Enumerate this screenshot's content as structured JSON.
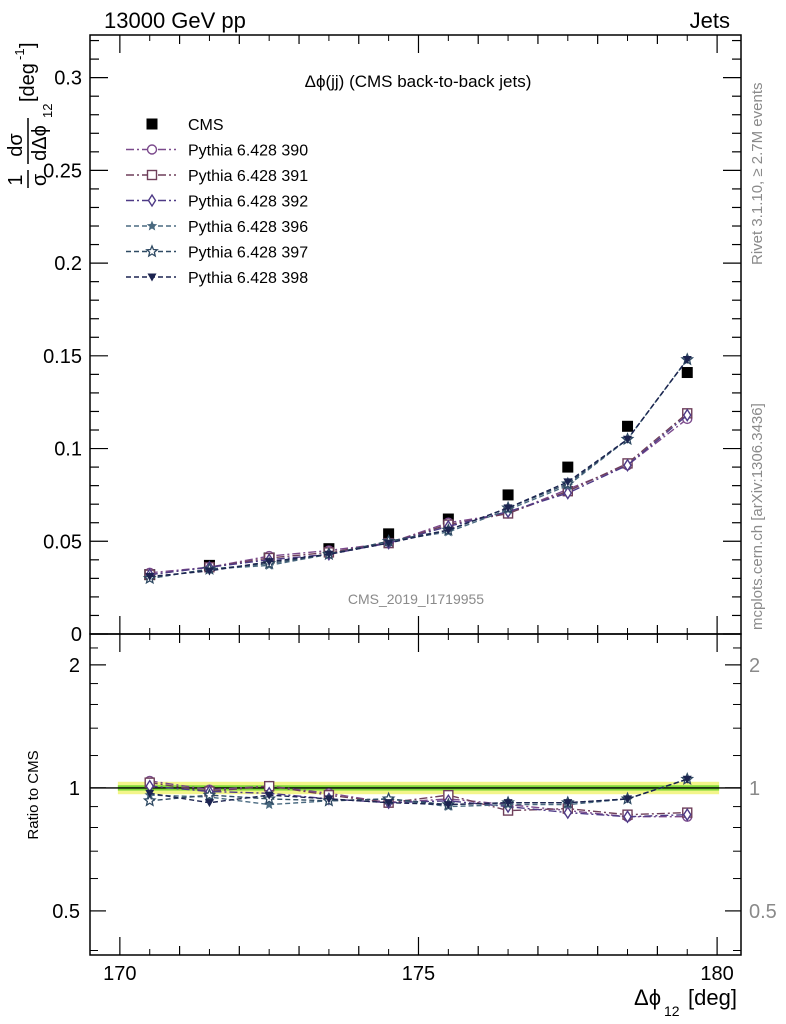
{
  "header": {
    "left_label": "13000 GeV pp",
    "right_label": "Jets"
  },
  "side_text": {
    "top": "Rivet 3.1.10, ≥ 2.7M events",
    "bottom": "mcplots.cern.ch [arXiv:1306.3436]"
  },
  "chart_data": [
    {
      "type": "line",
      "title": "Δϕ(jj) (CMS back-to-back jets)",
      "watermark": "CMS_2019_I1719955",
      "ylabel": "1/σ dσ/dΔϕ₁₂ [deg⁻¹]",
      "ylabel_parts": {
        "frac_num": "1",
        "frac_den": "σ",
        "dsig": "dσ",
        "dphi": "dΔϕ",
        "sub": "12",
        "unit_base": "[deg",
        "unit_sup": "-1",
        "unit_close": "]"
      },
      "xlim": [
        169.5,
        180.4
      ],
      "ylim": [
        0,
        0.323
      ],
      "y_ticks": [
        0,
        0.05,
        0.1,
        0.15,
        0.2,
        0.25,
        0.3
      ],
      "y_tick_labels": [
        "0",
        "0.05",
        "0.1",
        "0.15",
        "0.2",
        "0.25",
        "0.3"
      ],
      "legend_position": "top-left",
      "x": [
        170.5,
        171.5,
        172.5,
        173.5,
        174.5,
        175.5,
        176.5,
        177.5,
        178.5,
        179.5
      ],
      "series": [
        {
          "name": "CMS",
          "color": "#000000",
          "marker": "square-filled",
          "dash": "none",
          "values": [
            0.032,
            0.037,
            0.041,
            0.046,
            0.054,
            0.062,
            0.075,
            0.09,
            0.112,
            0.141
          ]
        },
        {
          "name": "Pythia 6.428 390",
          "color": "#7b4a8c",
          "marker": "circle-open",
          "dash": "8,3,2,3",
          "values": [
            0.033,
            0.036,
            0.042,
            0.045,
            0.049,
            0.06,
            0.065,
            0.078,
            0.091,
            0.116
          ]
        },
        {
          "name": "Pythia 6.428 391",
          "color": "#6e3f5a",
          "marker": "square-open",
          "dash": "8,3,2,3",
          "values": [
            0.032,
            0.036,
            0.041,
            0.044,
            0.049,
            0.059,
            0.065,
            0.077,
            0.092,
            0.119
          ]
        },
        {
          "name": "Pythia 6.428 392",
          "color": "#4e3a86",
          "marker": "diamond-open",
          "dash": "8,3,2,3",
          "values": [
            0.032,
            0.036,
            0.04,
            0.043,
            0.049,
            0.058,
            0.066,
            0.076,
            0.091,
            0.118
          ]
        },
        {
          "name": "Pythia 6.428 396",
          "color": "#4a6a80",
          "marker": "star-filled",
          "dash": "5,3",
          "values": [
            0.03,
            0.035,
            0.037,
            0.043,
            0.05,
            0.055,
            0.067,
            0.08,
            0.105,
            0.148
          ]
        },
        {
          "name": "Pythia 6.428 397",
          "color": "#2f4a63",
          "marker": "star-open",
          "dash": "5,3",
          "values": [
            0.03,
            0.035,
            0.038,
            0.043,
            0.05,
            0.056,
            0.068,
            0.081,
            0.105,
            0.148
          ]
        },
        {
          "name": "Pythia 6.428 398",
          "color": "#1c2450",
          "marker": "triangle-down-filled",
          "dash": "5,3",
          "values": [
            0.031,
            0.034,
            0.039,
            0.043,
            0.049,
            0.056,
            0.068,
            0.082,
            0.105,
            0.148
          ]
        }
      ]
    },
    {
      "type": "line",
      "ylabel": "Ratio to CMS",
      "xlabel": "Δϕ₁₂ [deg]",
      "xlabel_parts": {
        "base": "Δϕ",
        "sub": "12",
        "unit": "[deg]"
      },
      "xlim": [
        169.5,
        180.4
      ],
      "ylim": [
        0.39,
        2.38
      ],
      "x_ticks": [
        170,
        175,
        180
      ],
      "x_tick_labels": [
        "170",
        "175",
        "180"
      ],
      "y_ticks": [
        0.5,
        1,
        2
      ],
      "y_tick_labels": [
        "0.5",
        "1",
        "2"
      ],
      "band": {
        "inner": [
          0.985,
          1.015
        ],
        "outer": [
          0.965,
          1.035
        ],
        "inner_color": "#7fd93a",
        "outer_color": "#f3f58a"
      },
      "x": [
        170.5,
        171.5,
        172.5,
        173.5,
        174.5,
        175.5,
        176.5,
        177.5,
        178.5,
        179.5
      ],
      "series": [
        {
          "name": "Pythia 6.428 390",
          "values": [
            1.04,
            0.99,
            1.01,
            0.97,
            0.92,
            0.94,
            0.91,
            0.88,
            0.85,
            0.85
          ]
        },
        {
          "name": "Pythia 6.428 391",
          "values": [
            1.03,
            0.98,
            1.01,
            0.96,
            0.92,
            0.96,
            0.88,
            0.89,
            0.86,
            0.87
          ]
        },
        {
          "name": "Pythia 6.428 392",
          "values": [
            1.01,
            0.98,
            0.97,
            0.94,
            0.92,
            0.93,
            0.9,
            0.87,
            0.85,
            0.86
          ]
        },
        {
          "name": "Pythia 6.428 396",
          "values": [
            0.96,
            0.95,
            0.91,
            0.93,
            0.94,
            0.9,
            0.91,
            0.91,
            0.94,
            1.05
          ]
        },
        {
          "name": "Pythia 6.428 397",
          "values": [
            0.93,
            0.96,
            0.94,
            0.93,
            0.94,
            0.91,
            0.92,
            0.92,
            0.94,
            1.05
          ]
        },
        {
          "name": "Pythia 6.428 398",
          "values": [
            0.97,
            0.92,
            0.96,
            0.94,
            0.92,
            0.91,
            0.92,
            0.92,
            0.94,
            1.05
          ]
        }
      ]
    }
  ]
}
